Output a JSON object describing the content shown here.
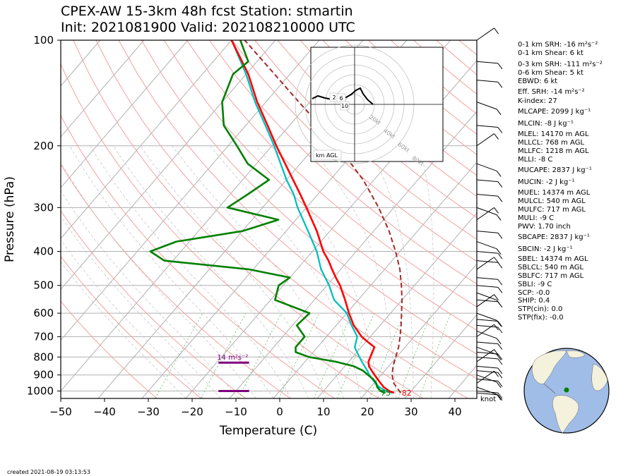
{
  "title": {
    "line1": "CPEX-AW 15-3km  48h fcst  Station: stmartin",
    "line2": "Init: 2021081900  Valid: 202108210000 UTC"
  },
  "chart_data": {
    "type": "skew-t",
    "xlabel": "Temperature (C)",
    "ylabel": "Pressure (hPa)",
    "xlim": [
      -50,
      45
    ],
    "ylim": [
      1050,
      100
    ],
    "y_scale": "log",
    "xticks": [
      "−50",
      "−40",
      "−30",
      "−20",
      "−10",
      "0",
      "10",
      "20",
      "30",
      "40"
    ],
    "xtick_values": [
      -50,
      -40,
      -30,
      -20,
      -10,
      0,
      10,
      20,
      30,
      40
    ],
    "yticks": [
      "100",
      "200",
      "300",
      "400",
      "500",
      "600",
      "700",
      "800",
      "900",
      "1000"
    ],
    "ytick_values": [
      100,
      200,
      300,
      400,
      500,
      600,
      700,
      800,
      900,
      1000
    ],
    "grid": true,
    "temperature": {
      "color": "#ff0000",
      "points": [
        [
          1013,
          26.5
        ],
        [
          1000,
          25
        ],
        [
          975,
          23
        ],
        [
          950,
          21.5
        ],
        [
          925,
          20
        ],
        [
          900,
          18.5
        ],
        [
          875,
          17
        ],
        [
          850,
          15.5
        ],
        [
          825,
          14.5
        ],
        [
          800,
          14
        ],
        [
          775,
          13.5
        ],
        [
          750,
          13
        ],
        [
          725,
          10.5
        ],
        [
          700,
          8
        ],
        [
          650,
          4
        ],
        [
          600,
          0.5
        ],
        [
          550,
          -3
        ],
        [
          500,
          -7
        ],
        [
          475,
          -9.5
        ],
        [
          450,
          -12
        ],
        [
          425,
          -14.5
        ],
        [
          400,
          -17.5
        ],
        [
          350,
          -23
        ],
        [
          300,
          -30
        ],
        [
          275,
          -34
        ],
        [
          250,
          -38.5
        ],
        [
          200,
          -49
        ],
        [
          175,
          -55
        ],
        [
          150,
          -62
        ],
        [
          125,
          -69.5
        ],
        [
          100,
          -80
        ]
      ]
    },
    "virtual_temperature": {
      "color": "#00bfbf",
      "points": [
        [
          1013,
          26
        ],
        [
          1000,
          24.2
        ],
        [
          975,
          22
        ],
        [
          950,
          20.3
        ],
        [
          925,
          18.8
        ],
        [
          900,
          17.3
        ],
        [
          875,
          16
        ],
        [
          850,
          14.5
        ],
        [
          825,
          13
        ],
        [
          800,
          11.5
        ],
        [
          775,
          10
        ],
        [
          750,
          8.5
        ],
        [
          700,
          7
        ],
        [
          650,
          3.5
        ],
        [
          600,
          0
        ],
        [
          550,
          -5.5
        ],
        [
          500,
          -9.5
        ],
        [
          450,
          -14.5
        ],
        [
          400,
          -19
        ],
        [
          350,
          -25
        ],
        [
          300,
          -32
        ],
        [
          275,
          -35.5
        ],
        [
          250,
          -40
        ],
        [
          200,
          -49.5
        ],
        [
          175,
          -55.5
        ],
        [
          150,
          -62.5
        ],
        [
          125,
          -70
        ],
        [
          100,
          -80
        ]
      ]
    },
    "dewpoint": {
      "color": "#008000",
      "points": [
        [
          1013,
          24.5
        ],
        [
          1000,
          23
        ],
        [
          975,
          21.5
        ],
        [
          950,
          20.5
        ],
        [
          925,
          19
        ],
        [
          900,
          17
        ],
        [
          875,
          15
        ],
        [
          850,
          12
        ],
        [
          825,
          7
        ],
        [
          800,
          0
        ],
        [
          775,
          -4
        ],
        [
          750,
          -5
        ],
        [
          700,
          -5
        ],
        [
          650,
          -9
        ],
        [
          600,
          -8.5
        ],
        [
          550,
          -19
        ],
        [
          500,
          -21
        ],
        [
          475,
          -20
        ],
        [
          450,
          -31
        ],
        [
          425,
          -52
        ],
        [
          400,
          -57
        ],
        [
          375,
          -53
        ],
        [
          350,
          -40
        ],
        [
          325,
          -34
        ],
        [
          300,
          -48
        ],
        [
          275,
          -46
        ],
        [
          250,
          -44
        ],
        [
          225,
          -52
        ],
        [
          200,
          -58
        ],
        [
          175,
          -65
        ],
        [
          150,
          -70
        ],
        [
          125,
          -73
        ],
        [
          115,
          -72
        ],
        [
          100,
          -78
        ]
      ]
    },
    "parcel": {
      "color": "#a52a2a",
      "style": "dashed",
      "points": [
        [
          1013,
          28
        ],
        [
          950,
          24.5
        ],
        [
          900,
          22.5
        ],
        [
          850,
          21
        ],
        [
          800,
          19.8
        ],
        [
          750,
          18.5
        ],
        [
          700,
          16.8
        ],
        [
          650,
          14.8
        ],
        [
          600,
          12.5
        ],
        [
          550,
          10
        ],
        [
          500,
          7
        ],
        [
          450,
          3.5
        ],
        [
          400,
          -1
        ],
        [
          350,
          -6.5
        ],
        [
          300,
          -13.5
        ],
        [
          250,
          -22.5
        ],
        [
          200,
          -35
        ],
        [
          175,
          -43
        ],
        [
          150,
          -52.5
        ],
        [
          125,
          -63.5
        ],
        [
          100,
          -77
        ]
      ]
    },
    "surface_labels": [
      {
        "text": "75",
        "color": "#008000",
        "x": 24.2
      },
      {
        "text": "82",
        "color": "#ff0000",
        "x": 29
      }
    ],
    "srh_bars": [
      {
        "label": "14 m²s⁻²",
        "p_top": 830,
        "p_bottom": 1000,
        "color": "#7f007f"
      }
    ],
    "wind_unit_label": "knot",
    "hodograph": {
      "ring_labels": [
        "20kt",
        "40kt",
        "60kt",
        "80kt"
      ],
      "height_labels": [
        "2",
        "6",
        "10"
      ],
      "footer_label": "km AGL"
    }
  },
  "indices": [
    "0-1 km SRH: -16 m²s⁻²",
    "0-1 km Shear: 6 kt",
    "0-3 km SRH: -111 m²s⁻²",
    "0-6 km Shear: 5 kt",
    "EBWD: 6 kt",
    "Eff. SRH: -14 m²s⁻²",
    "K-index: 27",
    "MLCAPE: 2099 J kg⁻¹",
    "MLCIN: -8 J kg⁻¹",
    "MLEL: 14170 m AGL",
    "MLLCL: 768 m AGL",
    "MLLFC: 1218 m AGL",
    "MLLI: -8 C",
    "MUCAPE: 2837 J kg⁻¹",
    "MUCIN: -2 J kg⁻¹",
    "MUEL: 14374 m AGL",
    "MULCL: 540 m AGL",
    "MULFC: 717 m AGL",
    "MULI: -9 C",
    "PWV: 1.70 inch",
    "SBCAPE: 2837 J kg⁻¹",
    "SBCIN: -2 J kg⁻¹",
    "SBEL: 14374 m AGL",
    "SBLCL: 540 m AGL",
    "SBLFC: 717 m AGL",
    "SBLI: -9 C",
    "SCP: -0.0",
    "SHIP: 0.4",
    "STP(cin): 0.0",
    "STP(fix): -0.0"
  ],
  "created": "created 2021-08-19 03:13:53",
  "colors": {
    "isotherm": "#b0b0b0",
    "dry_adiabat": "#f4a0a0",
    "moist_adiabat": "#c0c0c0",
    "mixing_ratio": "#66bb66",
    "ocean": "#a0bde8",
    "land": "#f4f1dc",
    "station": "#008000"
  }
}
